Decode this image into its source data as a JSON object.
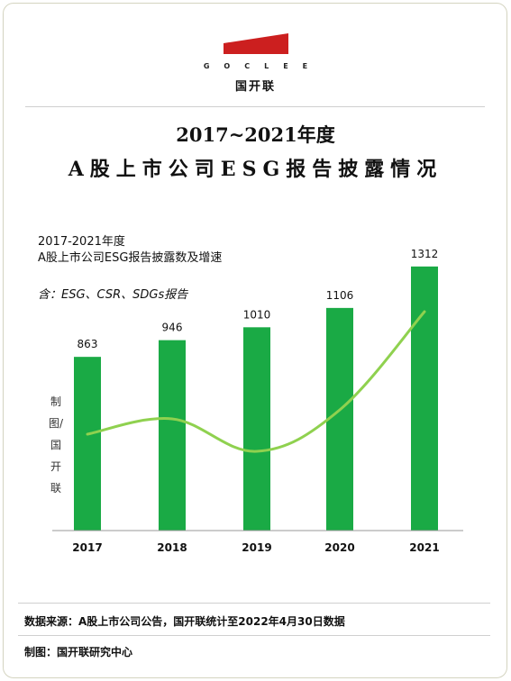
{
  "brand": {
    "logo_text": "GOCLEE",
    "name_cn": "国开联",
    "logo_color": "#cc1f1f"
  },
  "titles": {
    "line1": "2017~2021年度",
    "line2": "A股上市公司ESG报告披露情况"
  },
  "chart_data": {
    "type": "bar",
    "title_line1": "2017-2021年度",
    "title_line2": "A股上市公司ESG报告披露数及增速",
    "note": "含：ESG、CSR、SDGs报告",
    "categories": [
      "2017",
      "2018",
      "2019",
      "2020",
      "2021"
    ],
    "values": [
      863,
      946,
      1010,
      1106,
      1312
    ],
    "bar_color": "#1aaa45",
    "growth_line_color": "#8fd14f",
    "watermark": "制图/国开联",
    "grid": false,
    "ylim": [
      0,
      1450
    ]
  },
  "footer": {
    "source": "数据来源：A股上市公司公告，国开联统计至2022年4月30日数据",
    "maker": "制图：国开联研究中心"
  }
}
